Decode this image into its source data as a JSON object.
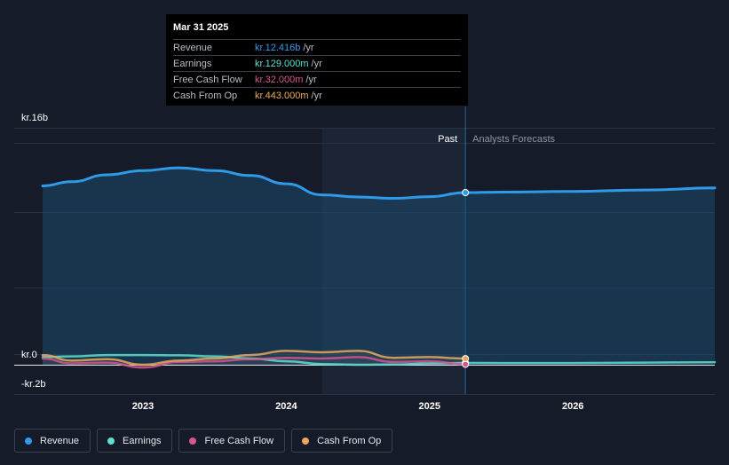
{
  "tooltip": {
    "date": "Mar 31 2025",
    "rows": [
      {
        "label": "Revenue",
        "value": "kr.12.416b",
        "unit": "/yr",
        "color": "#2f9be8"
      },
      {
        "label": "Earnings",
        "value": "kr.129.000m",
        "unit": "/yr",
        "color": "#5ce0cf"
      },
      {
        "label": "Free Cash Flow",
        "value": "kr.32.000m",
        "unit": "/yr",
        "color": "#d4568f"
      },
      {
        "label": "Cash From Op",
        "value": "kr.443.000m",
        "unit": "/yr",
        "color": "#e9a85c"
      }
    ]
  },
  "legend": [
    {
      "label": "Revenue",
      "color": "#2f9be8"
    },
    {
      "label": "Earnings",
      "color": "#5ce0cf"
    },
    {
      "label": "Free Cash Flow",
      "color": "#d4568f"
    },
    {
      "label": "Cash From Op",
      "color": "#e9a85c"
    }
  ],
  "chart_data": {
    "type": "line",
    "y_unit_labels": {
      "top": "kr.16b",
      "zero": "kr.0",
      "bottom": "-kr.2b"
    },
    "ylim": [
      -2,
      16
    ],
    "xlim": [
      2022.3,
      2026.99
    ],
    "x_ticks": [
      {
        "label": "2023",
        "value": 2023.0
      },
      {
        "label": "2024",
        "value": 2024.0
      },
      {
        "label": "2025",
        "value": 2025.0
      },
      {
        "label": "2026",
        "value": 2026.0
      }
    ],
    "past_label": "Past",
    "forecast_label": "Analysts Forecasts",
    "past_start": 2024.25,
    "forecast_start": 2025.25,
    "highlight_x": 2025.25,
    "series": [
      {
        "name": "Revenue",
        "color": "#2f9be8",
        "area": true,
        "points": [
          [
            2022.3,
            12.9
          ],
          [
            2022.5,
            13.2
          ],
          [
            2022.75,
            13.7
          ],
          [
            2023.0,
            14.0
          ],
          [
            2023.25,
            14.2
          ],
          [
            2023.5,
            14.0
          ],
          [
            2023.75,
            13.65
          ],
          [
            2024.0,
            13.05
          ],
          [
            2024.25,
            12.25
          ],
          [
            2024.5,
            12.1
          ],
          [
            2024.75,
            12.0
          ],
          [
            2025.0,
            12.12
          ],
          [
            2025.25,
            12.416
          ],
          [
            2025.5,
            12.45
          ],
          [
            2026.0,
            12.5
          ],
          [
            2026.5,
            12.6
          ],
          [
            2026.99,
            12.75
          ]
        ]
      },
      {
        "name": "Earnings",
        "color": "#5ce0cf",
        "area": false,
        "points": [
          [
            2022.3,
            0.55
          ],
          [
            2022.5,
            0.6
          ],
          [
            2022.75,
            0.7
          ],
          [
            2023.0,
            0.7
          ],
          [
            2023.25,
            0.68
          ],
          [
            2023.5,
            0.6
          ],
          [
            2023.75,
            0.45
          ],
          [
            2024.0,
            0.25
          ],
          [
            2024.25,
            0.05
          ],
          [
            2024.5,
            0.0
          ],
          [
            2024.75,
            0.02
          ],
          [
            2025.0,
            0.1
          ],
          [
            2025.25,
            0.129
          ],
          [
            2025.5,
            0.12
          ],
          [
            2026.0,
            0.12
          ],
          [
            2026.5,
            0.15
          ],
          [
            2026.99,
            0.18
          ]
        ]
      },
      {
        "name": "Free Cash Flow",
        "color": "#d4568f",
        "area": false,
        "points": [
          [
            2022.3,
            0.45
          ],
          [
            2022.5,
            0.1
          ],
          [
            2022.75,
            0.15
          ],
          [
            2023.0,
            -0.2
          ],
          [
            2023.25,
            0.2
          ],
          [
            2023.5,
            0.25
          ],
          [
            2023.75,
            0.4
          ],
          [
            2024.0,
            0.5
          ],
          [
            2024.25,
            0.45
          ],
          [
            2024.5,
            0.55
          ],
          [
            2024.75,
            0.2
          ],
          [
            2025.0,
            0.25
          ],
          [
            2025.25,
            0.032
          ]
        ]
      },
      {
        "name": "Cash From Op",
        "color": "#e9a85c",
        "area": false,
        "points": [
          [
            2022.3,
            0.7
          ],
          [
            2022.5,
            0.3
          ],
          [
            2022.75,
            0.4
          ],
          [
            2023.0,
            0.0
          ],
          [
            2023.25,
            0.3
          ],
          [
            2023.5,
            0.45
          ],
          [
            2023.75,
            0.7
          ],
          [
            2024.0,
            1.0
          ],
          [
            2024.25,
            0.9
          ],
          [
            2024.5,
            1.0
          ],
          [
            2024.75,
            0.5
          ],
          [
            2025.0,
            0.55
          ],
          [
            2025.25,
            0.443
          ]
        ]
      }
    ]
  }
}
